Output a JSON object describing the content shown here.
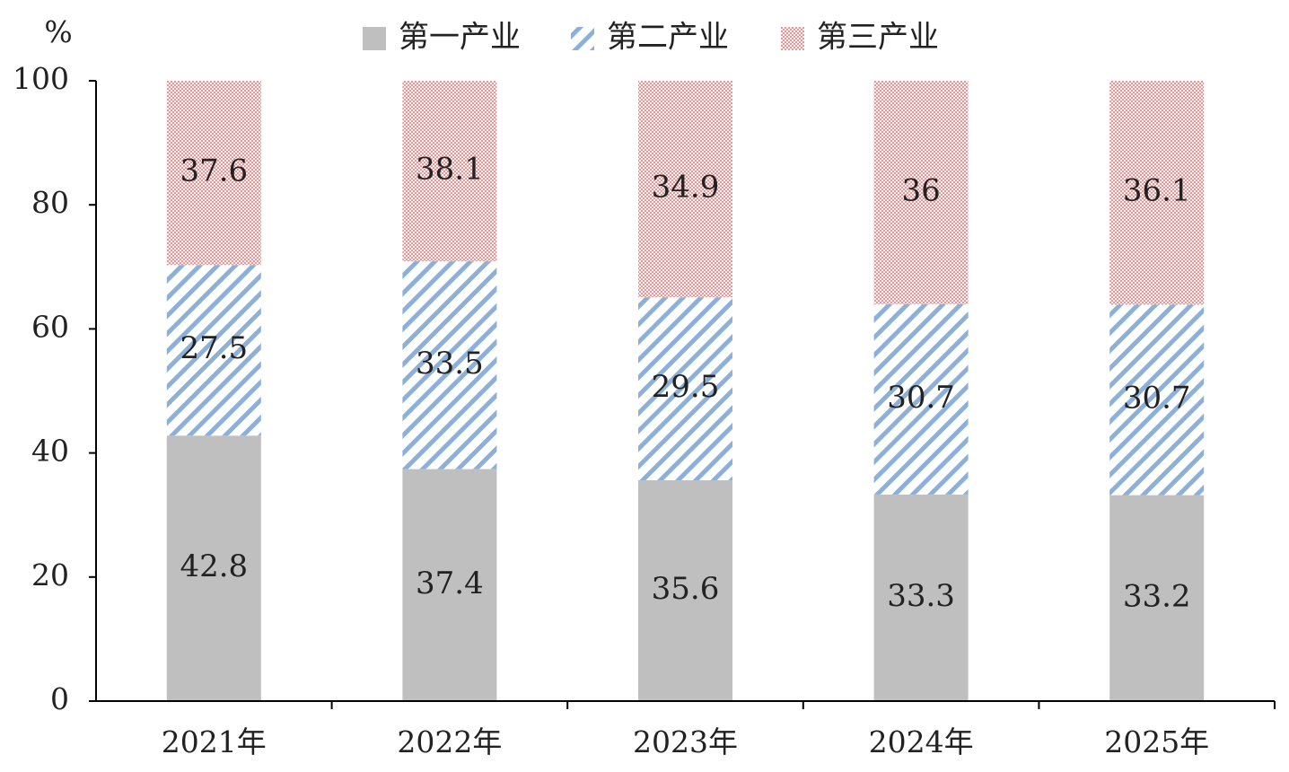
{
  "chart_data": {
    "type": "stacked_bar",
    "y_label": "%",
    "categories": [
      "2021年",
      "2022年",
      "2023年",
      "2024年",
      "2025年"
    ],
    "series": [
      {
        "name": "第一产业",
        "color": "#bfbfbf",
        "fill": "solid",
        "values": [
          42.8,
          37.4,
          35.6,
          33.3,
          33.2
        ]
      },
      {
        "name": "第二产业",
        "color": "#8db0d8",
        "fill": "hatch",
        "values": [
          27.5,
          33.5,
          29.5,
          30.7,
          30.7
        ]
      },
      {
        "name": "第三产业",
        "color": "#e09a9a",
        "fill": "dots",
        "values": [
          37.6,
          38.1,
          34.9,
          36,
          36.1
        ]
      }
    ],
    "ylim": [
      0,
      100
    ],
    "yticks": [
      0,
      20,
      40,
      60,
      80,
      100
    ],
    "grid": false
  }
}
